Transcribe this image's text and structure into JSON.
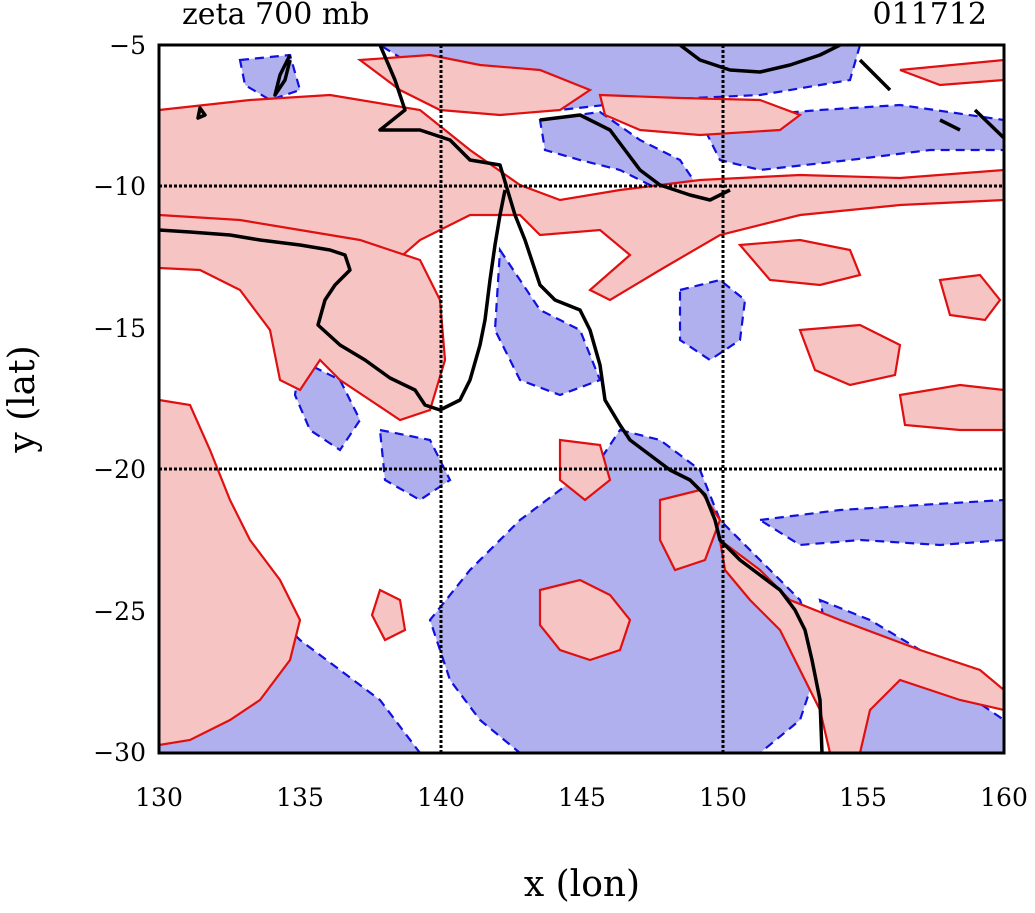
{
  "figure": {
    "title_left": "zeta 700 mb",
    "title_right": "011712",
    "xlabel": "x (lon)",
    "ylabel": "y (lat)",
    "xlim": [
      130,
      160
    ],
    "ylim": [
      -30,
      -5
    ],
    "xticks": [
      "130",
      "135",
      "140",
      "145",
      "150",
      "155",
      "160"
    ],
    "yticks": [
      "−5",
      "−10",
      "−15",
      "−20",
      "−25",
      "−30"
    ],
    "gridlines_lon": [
      140,
      150
    ],
    "gridlines_lat": [
      -10,
      -20
    ],
    "colors": {
      "positive_fill": "#f7c4c4",
      "positive_line": "#e01010",
      "negative_fill": "#b0b0ee",
      "negative_line": "#1010e0",
      "coast": "#000000",
      "grid": "#000000"
    }
  }
}
